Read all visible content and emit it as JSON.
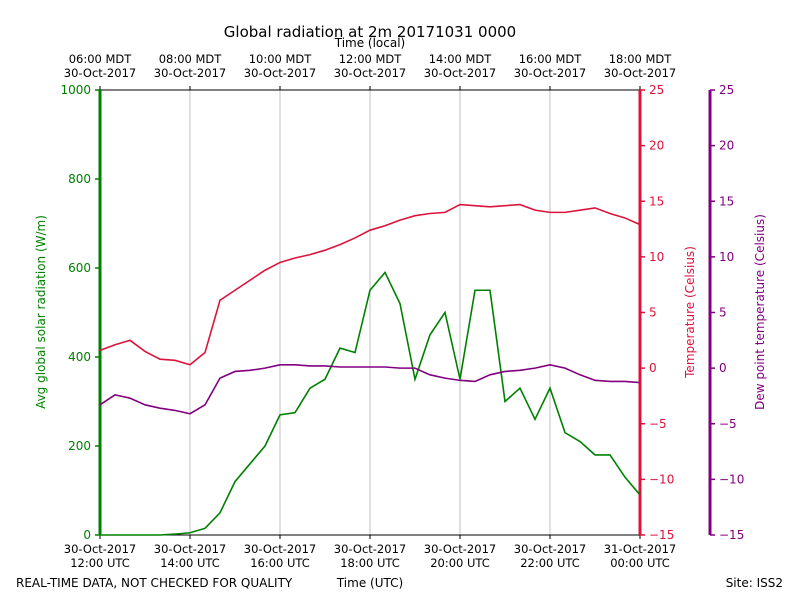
{
  "chart_data": {
    "type": "line",
    "title": "Global radiation at 2m 20171031 0000",
    "xlabel": "Time (UTC)",
    "x2label": "Time (local)",
    "ylabel": "Avg global solar radiation (W/m)",
    "y2label": "Temperature (Celsius)",
    "y3label": "Dew point temperature (Celsius)",
    "footer_left": "REAL-TIME DATA, NOT CHECKED FOR QUALITY",
    "footer_right": "Site: ISS2",
    "grid": true,
    "xlim": [
      "2017-10-30T12:00",
      "2017-10-31T00:00"
    ],
    "xticks": [
      {
        "value": "2017-10-30T12:00",
        "label": "30-Oct-2017\n12:00 UTC"
      },
      {
        "value": "2017-10-30T14:00",
        "label": "30-Oct-2017\n14:00 UTC"
      },
      {
        "value": "2017-10-30T16:00",
        "label": "30-Oct-2017\n16:00 UTC"
      },
      {
        "value": "2017-10-30T18:00",
        "label": "30-Oct-2017\n18:00 UTC"
      },
      {
        "value": "2017-10-30T20:00",
        "label": "30-Oct-2017\n20:00 UTC"
      },
      {
        "value": "2017-10-30T22:00",
        "label": "30-Oct-2017\n22:00 UTC"
      },
      {
        "value": "2017-10-31T00:00",
        "label": "31-Oct-2017\n00:00 UTC"
      }
    ],
    "x2ticks": [
      {
        "value": "2017-10-30T12:00",
        "label": "06:00 MDT\n30-Oct-2017"
      },
      {
        "value": "2017-10-30T14:00",
        "label": "08:00 MDT\n30-Oct-2017"
      },
      {
        "value": "2017-10-30T16:00",
        "label": "10:00 MDT\n30-Oct-2017"
      },
      {
        "value": "2017-10-30T18:00",
        "label": "12:00 MDT\n30-Oct-2017"
      },
      {
        "value": "2017-10-30T20:00",
        "label": "14:00 MDT\n30-Oct-2017"
      },
      {
        "value": "2017-10-30T22:00",
        "label": "16:00 MDT\n30-Oct-2017"
      },
      {
        "value": "2017-10-31T00:00",
        "label": "18:00 MDT\n30-Oct-2017"
      }
    ],
    "ylim": [
      0,
      1000
    ],
    "yticks": [
      0,
      200,
      400,
      600,
      800,
      1000
    ],
    "y2lim": [
      -15,
      25
    ],
    "y2ticks": [
      {
        "value": -15,
        "label": "−15"
      },
      {
        "value": -10,
        "label": "−10"
      },
      {
        "value": -5,
        "label": "−5"
      },
      0,
      5,
      10,
      15,
      20,
      25
    ],
    "y3lim": [
      -15,
      25
    ],
    "y3ticks": [
      {
        "value": -15,
        "label": "−15"
      },
      {
        "value": -10,
        "label": "−10"
      },
      {
        "value": -5,
        "label": "−5"
      },
      0,
      5,
      10,
      15,
      20,
      25
    ],
    "x": [
      "2017-10-30T12:00",
      "2017-10-30T12:20",
      "2017-10-30T12:40",
      "2017-10-30T13:00",
      "2017-10-30T13:20",
      "2017-10-30T13:40",
      "2017-10-30T14:00",
      "2017-10-30T14:20",
      "2017-10-30T14:40",
      "2017-10-30T15:00",
      "2017-10-30T15:20",
      "2017-10-30T15:40",
      "2017-10-30T16:00",
      "2017-10-30T16:20",
      "2017-10-30T16:40",
      "2017-10-30T17:00",
      "2017-10-30T17:20",
      "2017-10-30T17:40",
      "2017-10-30T18:00",
      "2017-10-30T18:20",
      "2017-10-30T18:40",
      "2017-10-30T19:00",
      "2017-10-30T19:20",
      "2017-10-30T19:40",
      "2017-10-30T20:00",
      "2017-10-30T20:20",
      "2017-10-30T20:40",
      "2017-10-30T21:00",
      "2017-10-30T21:20",
      "2017-10-30T21:40",
      "2017-10-30T22:00",
      "2017-10-30T22:20",
      "2017-10-30T22:40",
      "2017-10-30T23:00",
      "2017-10-30T23:20",
      "2017-10-30T23:40",
      "2017-10-31T00:00"
    ],
    "series": [
      {
        "name": "Avg global solar radiation",
        "color": "#008000",
        "axis": "y",
        "values": [
          0,
          0,
          0,
          0,
          0,
          2,
          5,
          15,
          50,
          120,
          160,
          200,
          270,
          275,
          330,
          350,
          420,
          410,
          550,
          590,
          520,
          350,
          450,
          500,
          350,
          550,
          550,
          300,
          330,
          260,
          330,
          230,
          210,
          180,
          180,
          130,
          90
        ]
      },
      {
        "name": "Temperature",
        "color": "#dc143c",
        "axis": "y2",
        "values": [
          1.6,
          2.1,
          2.5,
          1.5,
          0.8,
          0.7,
          0.3,
          1.4,
          6.1,
          7,
          7.9,
          8.8,
          9.5,
          9.9,
          10.2,
          10.6,
          11.1,
          11.7,
          12.4,
          12.8,
          13.3,
          13.7,
          13.9,
          14,
          14.7,
          14.6,
          14.5,
          14.6,
          14.7,
          14.2,
          14,
          14,
          14.2,
          14.4,
          13.9,
          13.5,
          12.9
        ]
      },
      {
        "name": "Dew point temperature",
        "color": "#800080",
        "axis": "y3",
        "values": [
          -3.3,
          -2.4,
          -2.7,
          -3.3,
          -3.6,
          -3.8,
          -4.1,
          -3.3,
          -0.9,
          -0.3,
          -0.2,
          0,
          0.3,
          0.3,
          0.2,
          0.2,
          0.1,
          0.1,
          0.1,
          0.1,
          0,
          0,
          -0.6,
          -0.9,
          -1.1,
          -1.2,
          -0.6,
          -0.3,
          -0.2,
          0,
          0.3,
          0,
          -0.6,
          -1.1,
          -1.2,
          -1.2,
          -1.3
        ]
      }
    ]
  }
}
